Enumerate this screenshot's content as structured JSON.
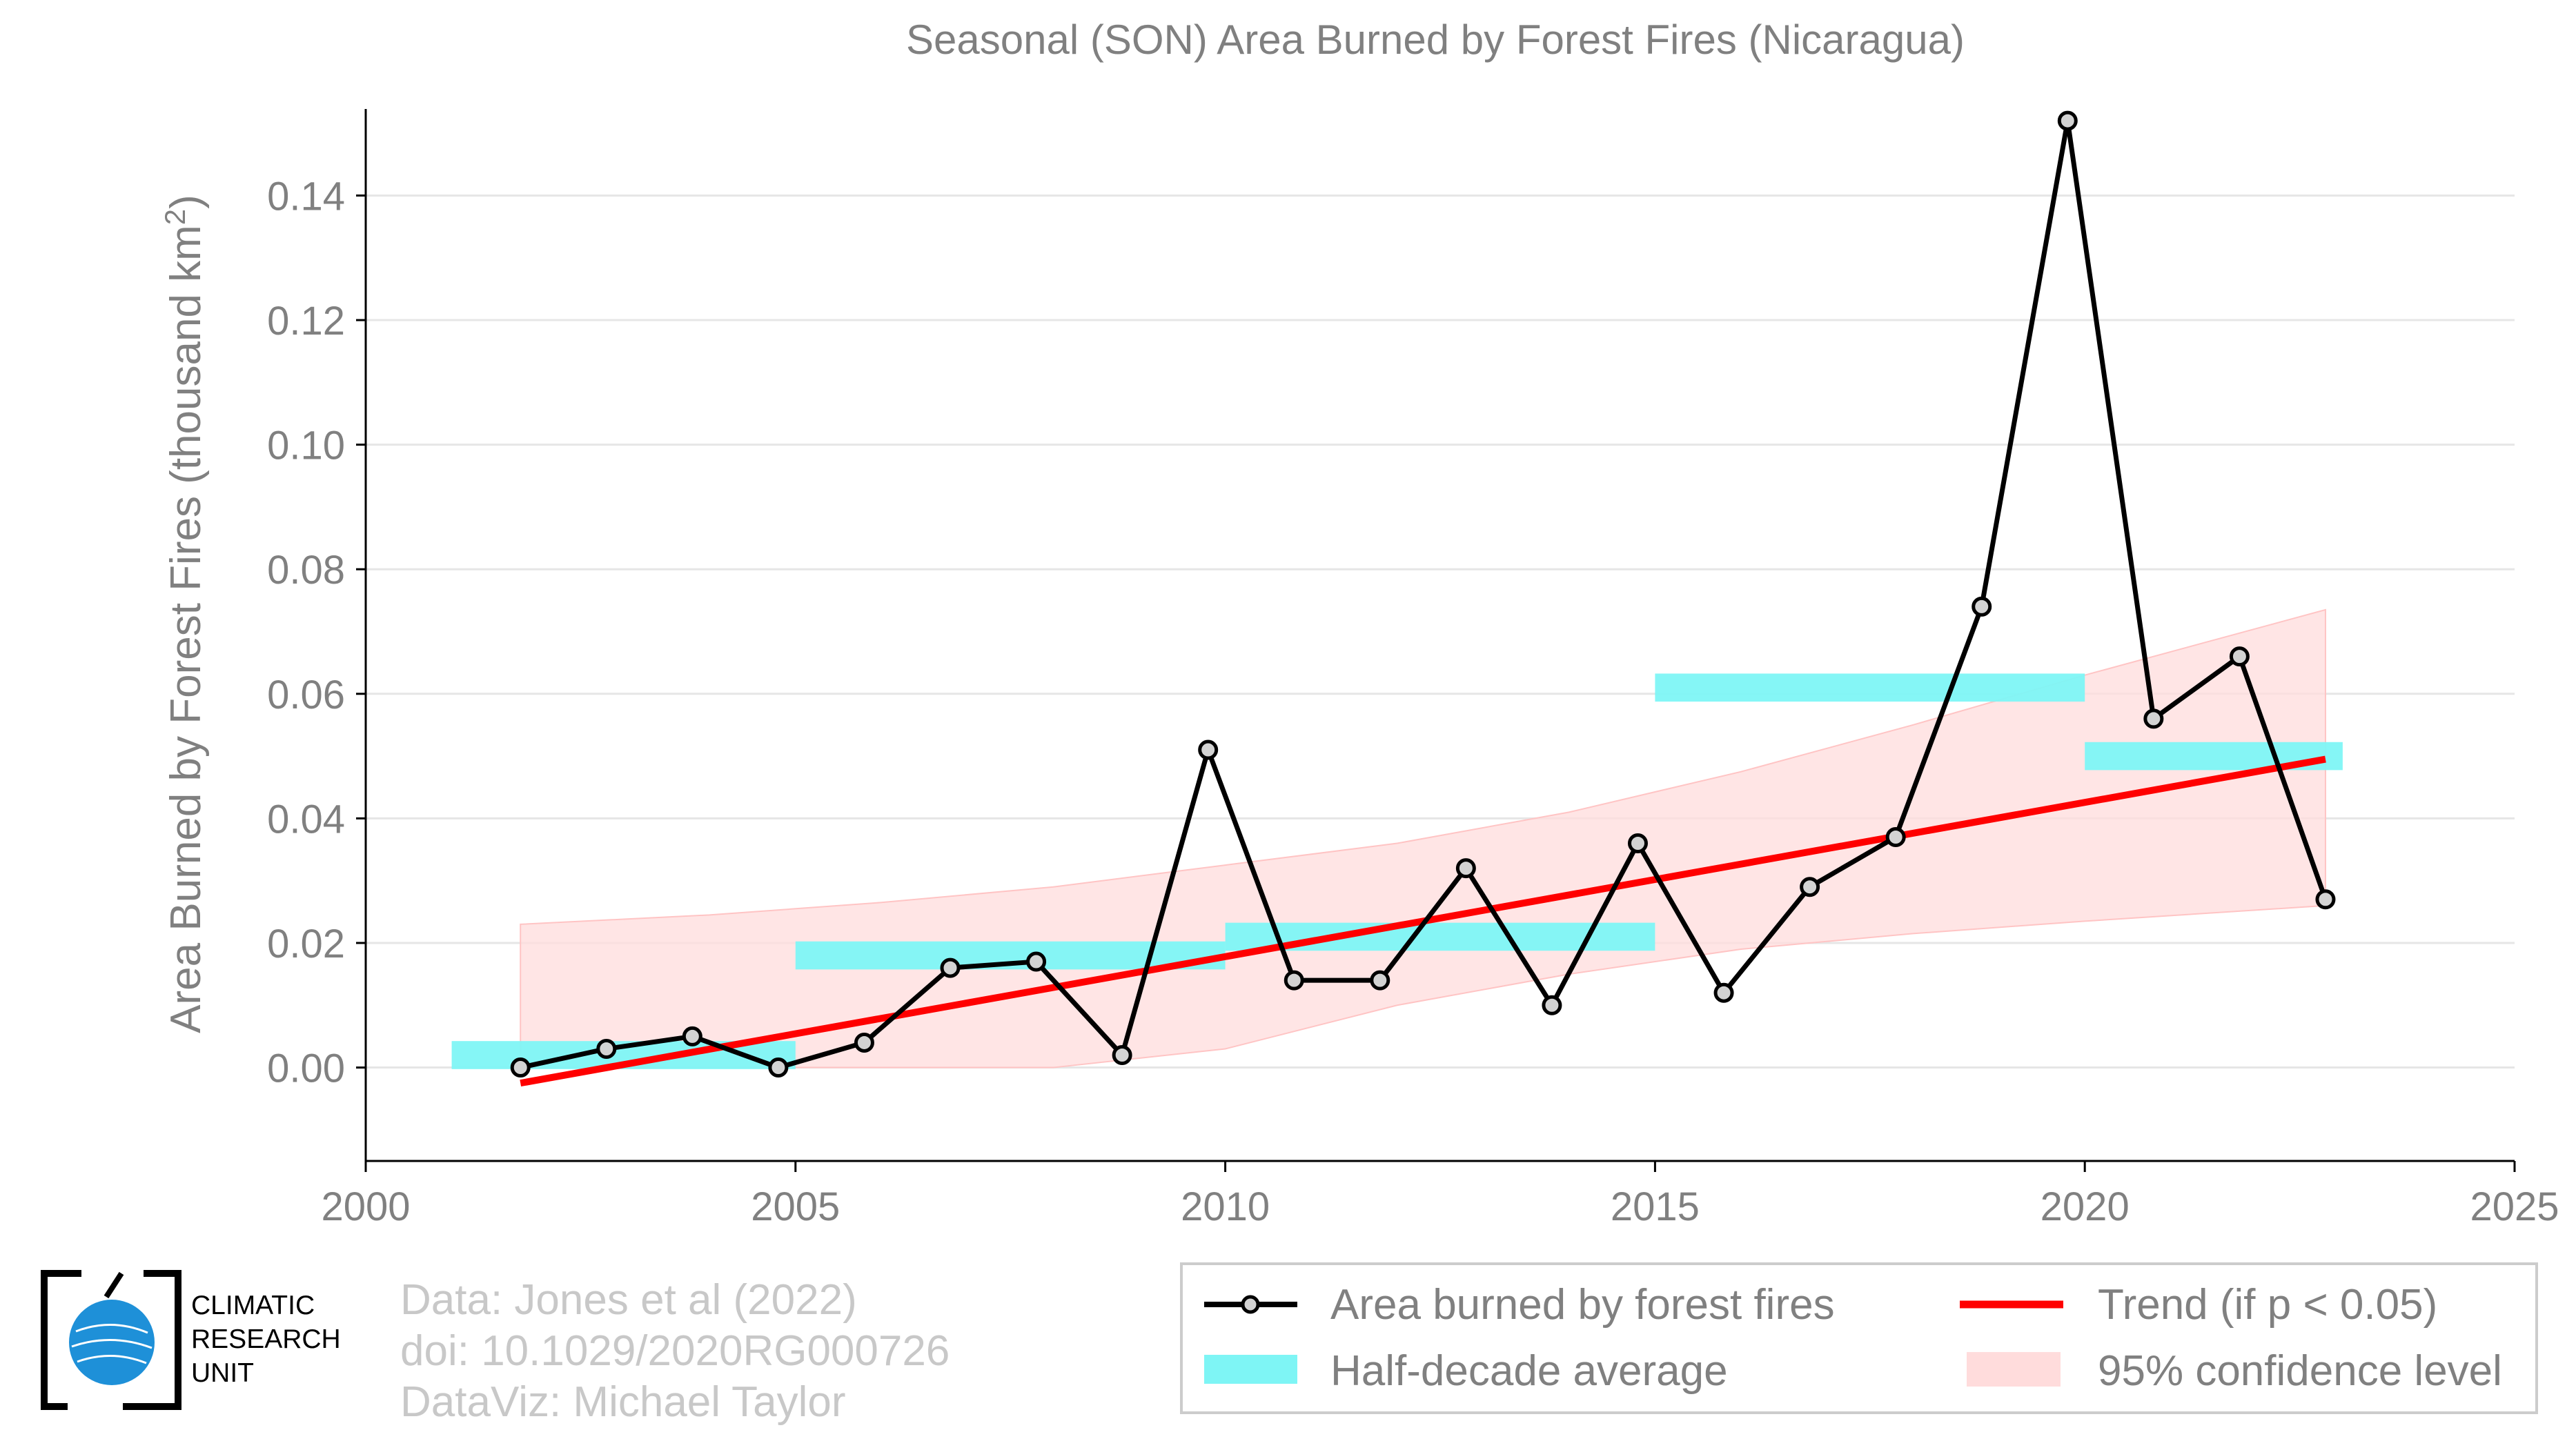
{
  "chart_data": {
    "type": "line",
    "title": "Seasonal (SON) Area Burned by Forest Fires (Nicaragua)",
    "xlabel": "",
    "ylabel": "Area Burned by Forest Fires (thousand km",
    "ylabel_sup": "2",
    "ylabel_close": ")",
    "xlim": [
      2000,
      2025
    ],
    "ylim": [
      -0.015,
      0.155
    ],
    "x_ticks": [
      2000,
      2005,
      2010,
      2015,
      2020,
      2025
    ],
    "y_ticks": [
      0.0,
      0.02,
      0.04,
      0.06,
      0.08,
      0.1,
      0.12,
      0.14
    ],
    "y_tick_labels": [
      "0.00",
      "0.02",
      "0.04",
      "0.06",
      "0.08",
      "0.10",
      "0.12",
      "0.14"
    ],
    "grid": "horizontal",
    "legend_position": "bottom-right",
    "series": [
      {
        "name": "Area burned by forest fires",
        "type": "line+markers",
        "color": "#000000",
        "x": [
          2001.8,
          2002.8,
          2003.8,
          2004.8,
          2005.8,
          2006.8,
          2007.8,
          2008.8,
          2009.8,
          2010.8,
          2011.8,
          2012.8,
          2013.8,
          2014.8,
          2015.8,
          2016.8,
          2017.8,
          2018.8,
          2019.8,
          2020.8,
          2021.8,
          2022.8
        ],
        "y": [
          0.0,
          0.003,
          0.005,
          0.0,
          0.004,
          0.016,
          0.017,
          0.002,
          0.051,
          0.014,
          0.014,
          0.032,
          0.01,
          0.036,
          0.012,
          0.029,
          0.037,
          0.074,
          0.152,
          0.056,
          0.066,
          0.027
        ]
      },
      {
        "name": "Half-decade average",
        "type": "bars",
        "color": "#7ef5f5",
        "segments": [
          {
            "x0": 2001.0,
            "x1": 2005.0,
            "y": 0.002
          },
          {
            "x0": 2005.0,
            "x1": 2010.0,
            "y": 0.018
          },
          {
            "x0": 2010.0,
            "x1": 2015.0,
            "y": 0.021
          },
          {
            "x0": 2015.0,
            "x1": 2020.0,
            "y": 0.061
          },
          {
            "x0": 2020.0,
            "x1": 2023.0,
            "y": 0.05
          }
        ]
      },
      {
        "name": "Trend (if p < 0.05)",
        "type": "line",
        "color": "#ff0000",
        "x": [
          2001.8,
          2022.8
        ],
        "y": [
          -0.0025,
          0.0495
        ]
      },
      {
        "name": "95% confidence level",
        "type": "area",
        "color": "#ffdcdc",
        "x": [
          2001.8,
          2004.0,
          2006.0,
          2008.0,
          2010.0,
          2012.0,
          2014.0,
          2016.0,
          2018.0,
          2020.0,
          2022.8
        ],
        "upper": [
          0.023,
          0.0245,
          0.0265,
          0.029,
          0.0325,
          0.036,
          0.041,
          0.0475,
          0.055,
          0.063,
          0.0735
        ],
        "lower": [
          0.0,
          0.0,
          0.0,
          0.0,
          0.003,
          0.01,
          0.015,
          0.019,
          0.0215,
          0.0235,
          0.026
        ]
      }
    ]
  },
  "legend": {
    "items": [
      {
        "label": "Area burned by forest fires"
      },
      {
        "label": "Trend (if p < 0.05)"
      },
      {
        "label": "Half-decade average"
      },
      {
        "label": "95% confidence level"
      }
    ]
  },
  "credits": {
    "line1": "Data: Jones et al (2022)",
    "line2": "doi: 10.1029/2020RG000726",
    "line3": "DataViz: Michael Taylor"
  },
  "logo": {
    "line1": "CLIMATIC",
    "line2": "RESEARCH",
    "line3": "UNIT"
  },
  "colors": {
    "text": "#808080",
    "grid": "#e6e6e6",
    "axis": "#000000",
    "marker_fill": "#d3d3d3",
    "credits": "#c8c8c8",
    "logo_blue": "#1e90d8"
  }
}
